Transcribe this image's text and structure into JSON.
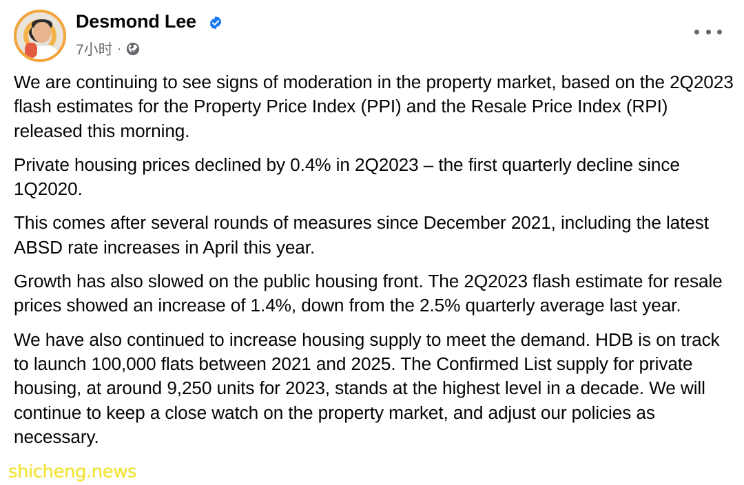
{
  "post": {
    "author": "Desmond Lee",
    "time": "7小时",
    "separator": "·",
    "privacy_icon": "globe-icon",
    "verified_icon": "verified-badge-icon",
    "more_icon": "more-options-icon",
    "paragraphs": [
      "We are continuing to see signs of moderation in the property market, based on the 2Q2023 flash estimates for the Property Price Index (PPI) and the Resale Price Index (RPI) released this morning.",
      "Private housing prices declined by 0.4% in 2Q2023 – the first quarterly decline since 1Q2020.",
      "This comes after several rounds of measures since December 2021, including the latest ABSD rate increases in April this year.",
      "Growth has also slowed on the public housing front. The 2Q2023 flash estimate for resale prices showed an increase of 1.4%, down from the 2.5% quarterly average last year.",
      "We have also continued to increase housing supply to meet the demand. HDB is on track to launch 100,000 flats between 2021 and 2025. The Confirmed List supply for private housing, at around 9,250 units for 2023, stands at the highest level in a decade. We will continue to keep a close watch on the property market, and adjust our policies as necessary."
    ]
  },
  "watermark": "shicheng.news",
  "colors": {
    "verified": "#1877f2",
    "meta_text": "#65676b",
    "watermark": "#f3e312"
  }
}
